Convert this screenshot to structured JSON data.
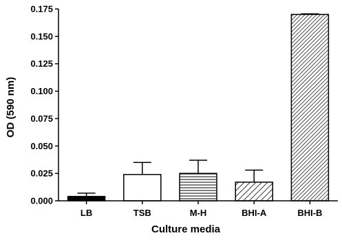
{
  "chart_data": {
    "type": "bar",
    "xlabel": "Culture media",
    "ylabel": "OD (590 nm)",
    "categories": [
      "LB",
      "TSB",
      "M-H",
      "BHI-A",
      "BHI-B"
    ],
    "values": [
      0.004,
      0.024,
      0.025,
      0.017,
      0.17
    ],
    "error": [
      0.003,
      0.011,
      0.012,
      0.011,
      0.0005
    ],
    "fills": [
      "solid-black",
      "white",
      "horizontal-lines",
      "diagonal-lines",
      "dense-diagonal"
    ],
    "ylim": [
      0,
      0.175
    ],
    "yticks": [
      "0.000",
      "0.025",
      "0.050",
      "0.075",
      "0.100",
      "0.125",
      "0.150",
      "0.175"
    ],
    "grid": false
  }
}
